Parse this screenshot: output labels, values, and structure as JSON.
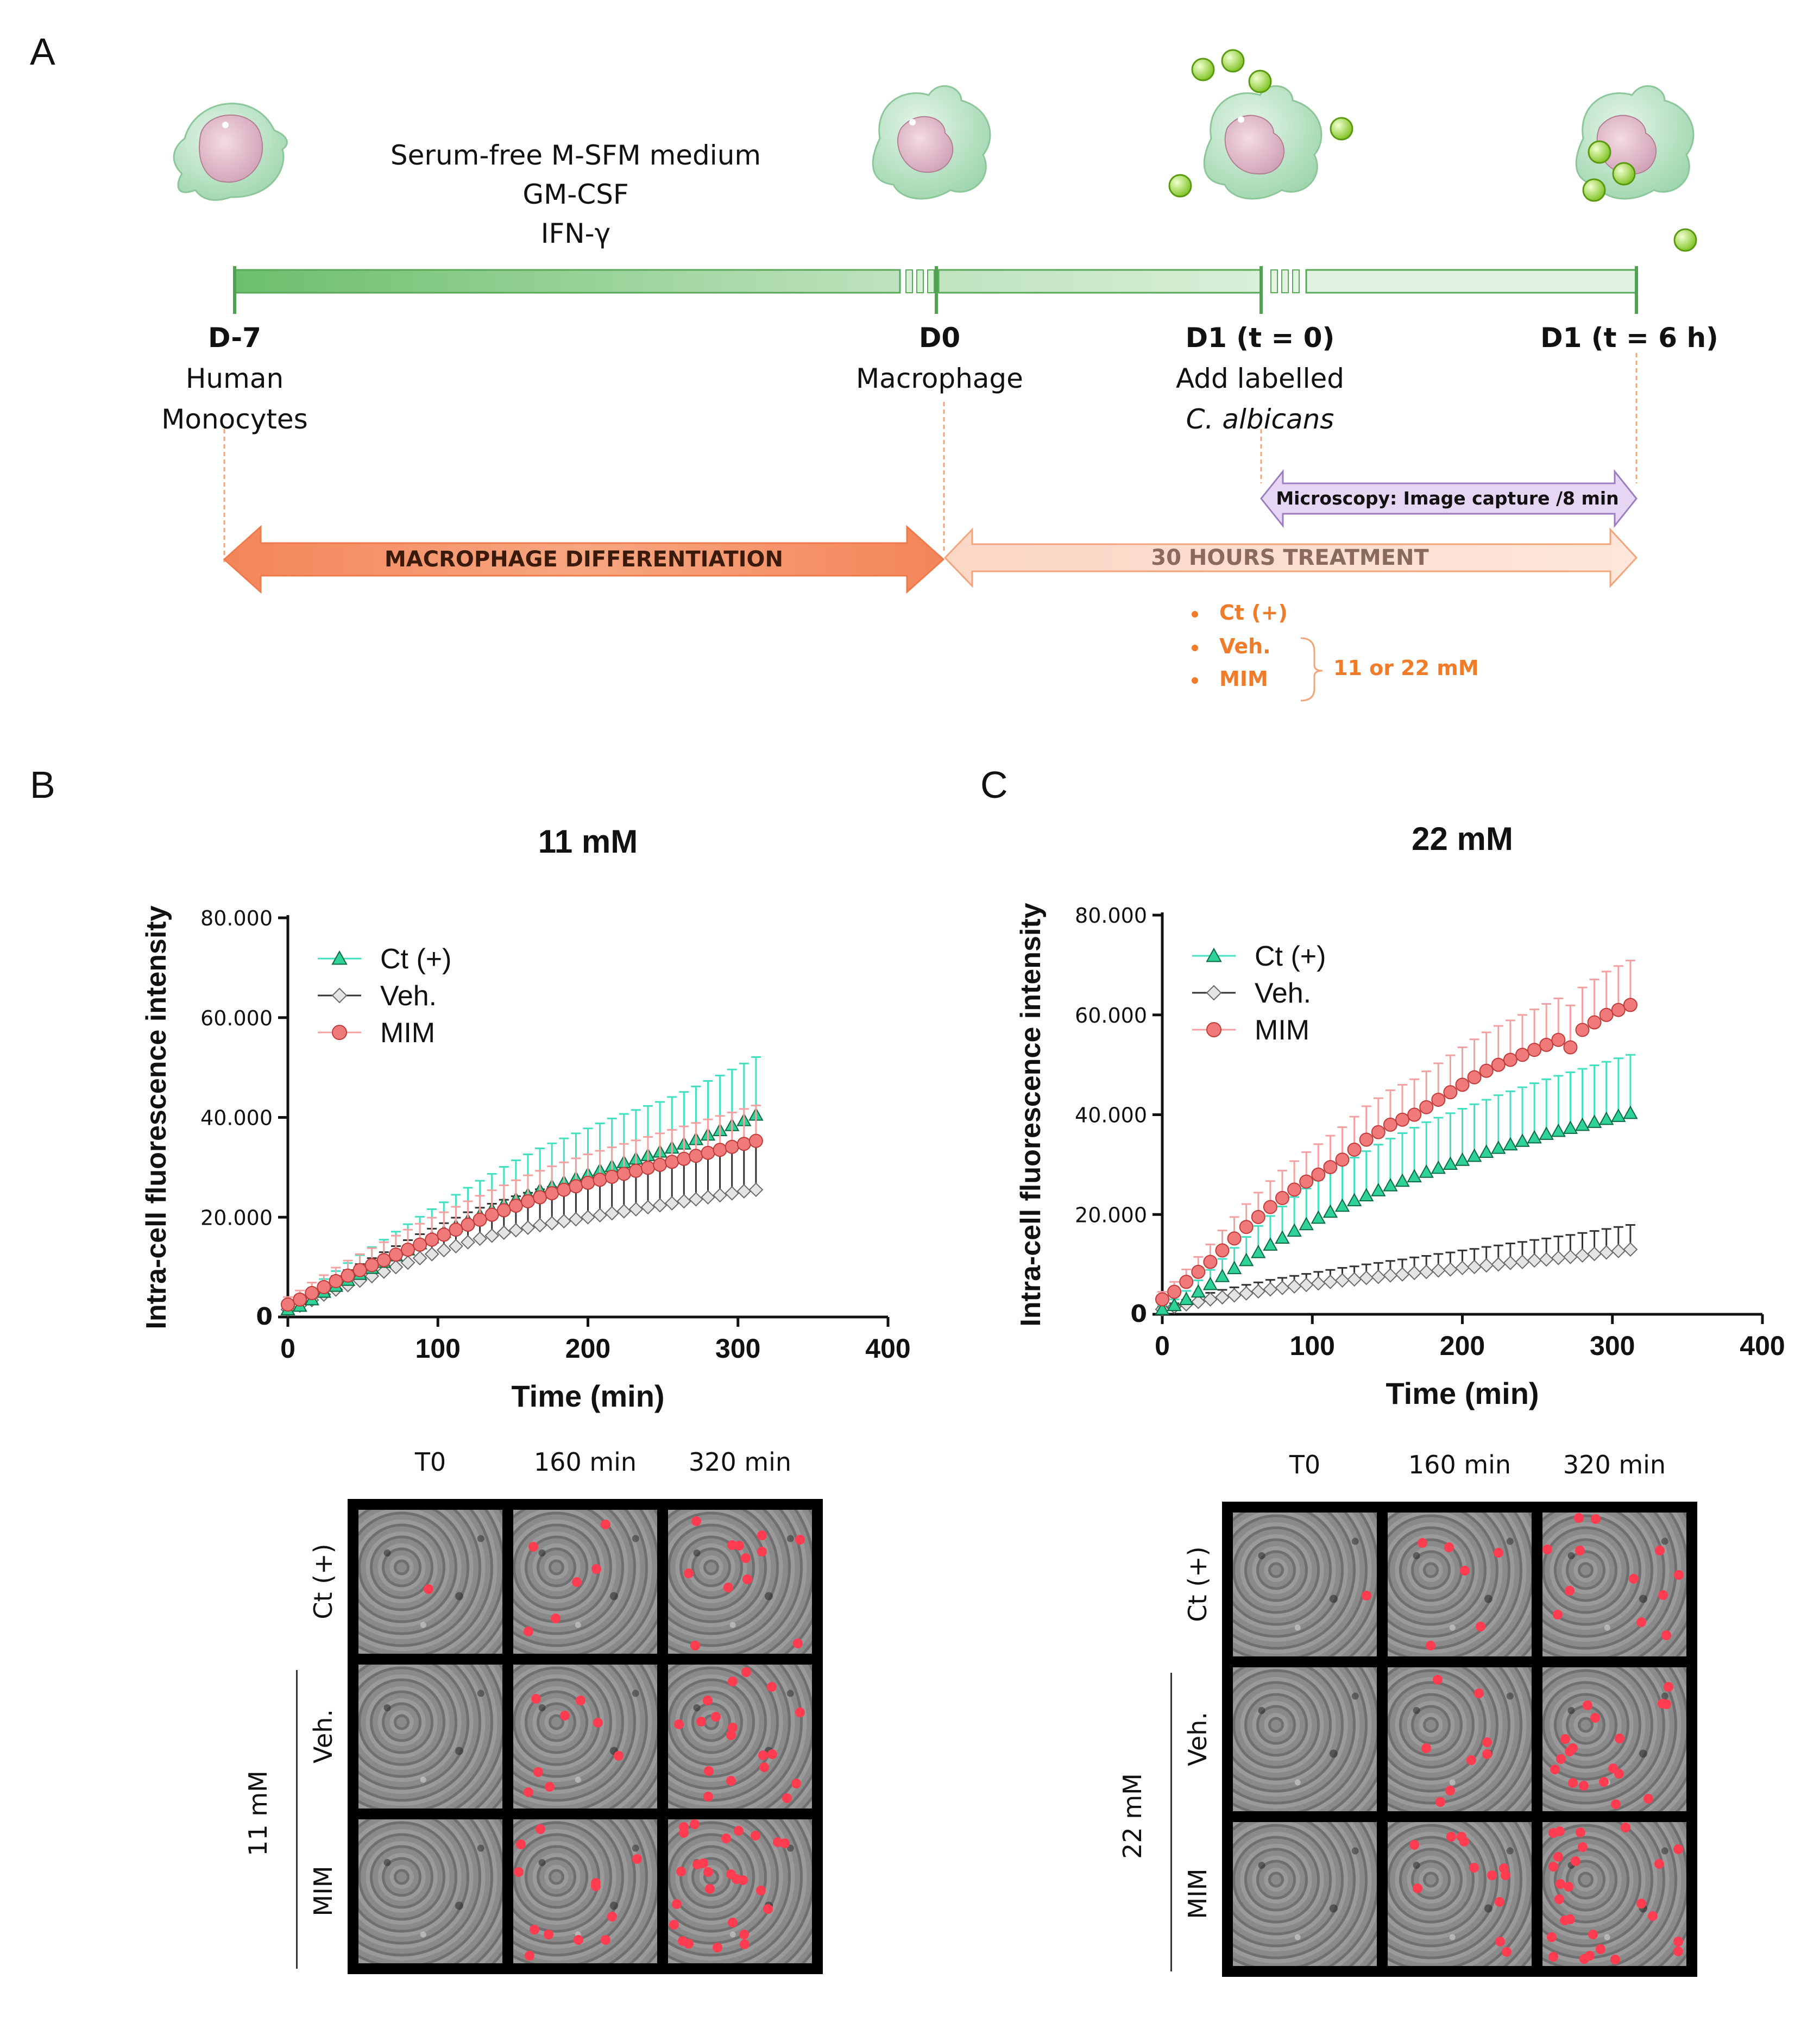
{
  "panels": {
    "a": "A",
    "b": "B",
    "c": "C"
  },
  "timeline": {
    "medium": [
      "Serum-free M-SFM medium",
      "GM-CSF",
      "IFN-γ"
    ],
    "points": [
      {
        "day": "D-7",
        "desc": [
          "Human",
          "Monocytes"
        ]
      },
      {
        "day": "D0",
        "desc": [
          "Macrophage"
        ]
      },
      {
        "day": "D1 (t = 0)",
        "desc": [
          "Add labelled",
          "C. albicans"
        ]
      },
      {
        "day": "D1 (t = 6 h)",
        "desc": []
      }
    ],
    "microscopy": "Microscopy: Image capture /8 min",
    "differentiation": "MACROPHAGE DIFFERENTIATION",
    "treatment": "30 HOURS TREATMENT",
    "conditions": [
      "Ct (+)",
      "Veh.",
      "MIM"
    ],
    "concentration": "11 or 22 mM",
    "colors": {
      "green_bar": "#7cc47c",
      "orange": "#f0885a",
      "orange_light": "#fad9c8",
      "purple": "#e2d0f0",
      "orange_text": "#f07b28",
      "cell": "#bfe6c8",
      "nucleus": "#e3bccb",
      "candida": "#a5dc3c"
    }
  },
  "chart_data": [
    {
      "type": "line",
      "title": "11 mM",
      "xlabel": "Time (min)",
      "ylabel": "Intra-cell fluorescence intensity",
      "xlim": [
        0,
        400
      ],
      "ylim": [
        0,
        80000
      ],
      "xticks": [
        "0",
        "100",
        "200",
        "300",
        "400"
      ],
      "yticks": [
        "0",
        "20.000",
        "40.000",
        "60.000",
        "80.000"
      ],
      "legend": "top-left",
      "x": [
        0,
        8,
        16,
        24,
        32,
        40,
        48,
        56,
        64,
        72,
        80,
        88,
        96,
        104,
        112,
        120,
        128,
        136,
        144,
        152,
        160,
        168,
        176,
        184,
        192,
        200,
        208,
        216,
        224,
        232,
        240,
        248,
        256,
        264,
        272,
        280,
        288,
        296,
        304,
        312
      ],
      "series": [
        {
          "name": "Ct (+)",
          "color": "#1fb07a",
          "err_color": "#40e0c0",
          "marker": "triangle",
          "values": [
            1500,
            2200,
            3500,
            5000,
            6200,
            7400,
            8600,
            9800,
            11000,
            12300,
            13500,
            14700,
            15900,
            17000,
            18200,
            19300,
            20400,
            21500,
            22600,
            23600,
            24500,
            25400,
            26200,
            27000,
            27800,
            28600,
            29400,
            30200,
            31000,
            31700,
            32400,
            33100,
            33900,
            34700,
            35600,
            36500,
            37400,
            38400,
            39400,
            40500
          ],
          "errors": [
            1200,
            1500,
            2000,
            2600,
            3000,
            3400,
            3800,
            4200,
            4500,
            4800,
            5100,
            5400,
            5700,
            6000,
            6300,
            6600,
            6900,
            7200,
            7500,
            7800,
            8100,
            8400,
            8600,
            8800,
            9000,
            9200,
            9400,
            9600,
            9700,
            9800,
            9900,
            10000,
            10200,
            10400,
            10600,
            10800,
            11000,
            11200,
            11400,
            11600
          ]
        },
        {
          "name": "Veh.",
          "color": "#a0a0a0",
          "err_color": "#333333",
          "marker": "diamond",
          "values": [
            1500,
            2300,
            3400,
            4500,
            5500,
            6400,
            7300,
            8200,
            9100,
            10000,
            10900,
            11800,
            12600,
            13400,
            14200,
            15000,
            15700,
            16300,
            16900,
            17400,
            17900,
            18400,
            18800,
            19200,
            19600,
            20000,
            20400,
            20800,
            21200,
            21600,
            22000,
            22400,
            22800,
            23200,
            23600,
            24000,
            24400,
            24800,
            25200,
            25500
          ],
          "errors": [
            1200,
            1500,
            1900,
            2300,
            2700,
            3000,
            3300,
            3600,
            3900,
            4200,
            4500,
            4800,
            5100,
            5400,
            5700,
            6000,
            6200,
            6400,
            6600,
            6800,
            7000,
            7200,
            7300,
            7400,
            7500,
            7600,
            7700,
            7800,
            7900,
            8000,
            8100,
            8200,
            8300,
            8400,
            8500,
            8600,
            8700,
            8800,
            8900,
            9000
          ]
        },
        {
          "name": "MIM",
          "color": "#ee6f6f",
          "err_color": "#f5a0a0",
          "marker": "circle",
          "values": [
            2500,
            3500,
            4800,
            6000,
            7200,
            8300,
            9400,
            10400,
            11400,
            12500,
            13500,
            14500,
            15500,
            16500,
            17500,
            18500,
            19500,
            20500,
            21400,
            22300,
            23200,
            24000,
            24800,
            25500,
            26200,
            26900,
            27500,
            28100,
            28700,
            29300,
            29900,
            30500,
            31100,
            31700,
            32300,
            32900,
            33500,
            34100,
            34700,
            35300
          ],
          "errors": [
            1500,
            1800,
            2100,
            2400,
            2700,
            3000,
            3200,
            3400,
            3600,
            3800,
            4000,
            4200,
            4400,
            4500,
            4600,
            4700,
            4800,
            4900,
            5000,
            5100,
            5200,
            5300,
            5400,
            5500,
            5600,
            5700,
            5800,
            5900,
            6000,
            6100,
            6200,
            6300,
            6400,
            6500,
            6600,
            6700,
            6800,
            6900,
            7000,
            7100
          ]
        }
      ]
    },
    {
      "type": "line",
      "title": "22 mM",
      "xlabel": "Time (min)",
      "ylabel": "Intra-cell fluorescence intensity",
      "xlim": [
        0,
        400
      ],
      "ylim": [
        0,
        80000
      ],
      "xticks": [
        "0",
        "100",
        "200",
        "300",
        "400"
      ],
      "yticks": [
        "0",
        "20.000",
        "40.000",
        "60.000",
        "80.000"
      ],
      "legend": "top-left",
      "x": [
        0,
        8,
        16,
        24,
        32,
        40,
        48,
        56,
        64,
        72,
        80,
        88,
        96,
        104,
        112,
        120,
        128,
        136,
        144,
        152,
        160,
        168,
        176,
        184,
        192,
        200,
        208,
        216,
        224,
        232,
        240,
        248,
        256,
        264,
        272,
        280,
        288,
        296,
        304,
        312
      ],
      "series": [
        {
          "name": "Ct (+)",
          "color": "#1fb07a",
          "err_color": "#40e0c0",
          "marker": "triangle",
          "values": [
            1000,
            1800,
            3000,
            4500,
            6000,
            7600,
            9200,
            10800,
            12400,
            13900,
            15300,
            16700,
            18000,
            19300,
            20500,
            21700,
            22800,
            23800,
            24800,
            25800,
            26700,
            27600,
            28500,
            29300,
            30100,
            30900,
            31700,
            32500,
            33300,
            34000,
            34700,
            35400,
            36100,
            36700,
            37300,
            37900,
            38500,
            39100,
            39700,
            40300
          ],
          "errors": [
            800,
            1200,
            1700,
            2300,
            2900,
            3500,
            4100,
            4700,
            5300,
            5800,
            6300,
            6800,
            7200,
            7600,
            8000,
            8300,
            8600,
            8900,
            9200,
            9400,
            9600,
            9800,
            10000,
            10100,
            10200,
            10300,
            10400,
            10500,
            10600,
            10700,
            10800,
            10900,
            11000,
            11100,
            11200,
            11300,
            11400,
            11500,
            11600,
            11700
          ]
        },
        {
          "name": "Veh.",
          "color": "#a0a0a0",
          "err_color": "#333333",
          "marker": "diamond",
          "values": [
            1000,
            1500,
            2000,
            2500,
            3000,
            3400,
            3800,
            4200,
            4600,
            5000,
            5300,
            5600,
            5900,
            6200,
            6500,
            6800,
            7000,
            7300,
            7500,
            7800,
            8000,
            8300,
            8500,
            8800,
            9000,
            9300,
            9500,
            9800,
            10000,
            10300,
            10500,
            10800,
            11000,
            11300,
            11500,
            11800,
            12100,
            12400,
            12700,
            13000
          ],
          "errors": [
            500,
            700,
            900,
            1100,
            1300,
            1500,
            1600,
            1700,
            1800,
            1900,
            2000,
            2100,
            2200,
            2300,
            2400,
            2500,
            2600,
            2700,
            2800,
            2900,
            3000,
            3100,
            3200,
            3300,
            3400,
            3500,
            3600,
            3700,
            3800,
            3900,
            4000,
            4100,
            4200,
            4300,
            4400,
            4500,
            4600,
            4700,
            4800,
            4900
          ]
        },
        {
          "name": "MIM",
          "color": "#ee6f6f",
          "err_color": "#f5a0a0",
          "marker": "circle",
          "values": [
            3000,
            4500,
            6500,
            8500,
            10500,
            12800,
            15200,
            17500,
            19500,
            21500,
            23300,
            25000,
            26600,
            28000,
            29500,
            31000,
            33000,
            35000,
            36500,
            38000,
            39000,
            40000,
            41500,
            43000,
            44500,
            46000,
            47500,
            48800,
            50000,
            51000,
            52000,
            53000,
            54000,
            55000,
            53500,
            57000,
            58500,
            60000,
            61000,
            62000
          ],
          "errors": [
            1500,
            2000,
            2500,
            3000,
            3500,
            4000,
            4300,
            4600,
            4900,
            5200,
            5500,
            5700,
            5900,
            6100,
            6300,
            6500,
            6600,
            6700,
            6800,
            6900,
            7000,
            7100,
            7200,
            7300,
            7400,
            7500,
            7600,
            7700,
            7800,
            7900,
            8000,
            8100,
            8200,
            8300,
            8400,
            8500,
            8600,
            8700,
            8800,
            8900
          ]
        }
      ]
    }
  ],
  "micrographs": [
    {
      "columns": [
        "T0",
        "160 min",
        "320 min"
      ],
      "rows": [
        "Ct (+)",
        "Veh.",
        "MIM"
      ],
      "group_label": "11 mM"
    },
    {
      "columns": [
        "T0",
        "160 min",
        "320 min"
      ],
      "rows": [
        "Ct (+)",
        "Veh.",
        "MIM"
      ],
      "group_label": "22 mM"
    }
  ]
}
